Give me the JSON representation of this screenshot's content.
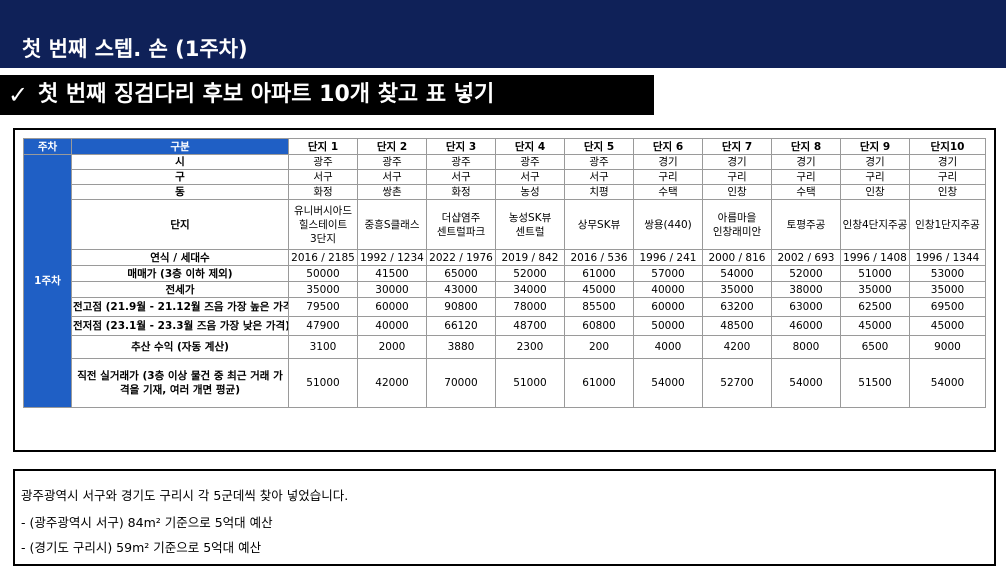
{
  "header": {
    "title": "첫 번째 스텝. 손 (1주차)"
  },
  "subheader": {
    "icon": "check-icon",
    "title": "첫 번째 징검다리 후보 아파트 10개 찾고 표 넣기"
  },
  "table": {
    "corner_label": "주차",
    "category_header": "구분",
    "complex_headers": [
      "단지 1",
      "단지 2",
      "단지 3",
      "단지 4",
      "단지 5",
      "단지 6",
      "단지 7",
      "단지 8",
      "단지 9",
      "단지10"
    ],
    "week_label": "1주차",
    "rows": [
      {
        "label": "시",
        "values": [
          "광주",
          "광주",
          "광주",
          "광주",
          "광주",
          "경기",
          "경기",
          "경기",
          "경기",
          "경기"
        ]
      },
      {
        "label": "구",
        "values": [
          "서구",
          "서구",
          "서구",
          "서구",
          "서구",
          "구리",
          "구리",
          "구리",
          "구리",
          "구리"
        ]
      },
      {
        "label": "동",
        "values": [
          "화정",
          "쌍촌",
          "화정",
          "농성",
          "치평",
          "수택",
          "인창",
          "수택",
          "인창",
          "인창"
        ]
      },
      {
        "label": "단지",
        "values": [
          "유니버시아드\n힐스테이트\n3단지",
          "중흥S클래스",
          "더샵염주\n센트럴파크",
          "농성SK뷰\n센트럴",
          "상무SK뷰",
          "쌍용(440)",
          "아름마을\n인창래미안",
          "토평주공",
          "인창4단지주공",
          "인창1단지주공"
        ]
      },
      {
        "label": "연식 / 세대수",
        "values": [
          "2016 / 2185",
          "1992 / 1234",
          "2022 / 1976",
          "2019 / 842",
          "2016 / 536",
          "1996 / 241",
          "2000 / 816",
          "2002 / 693",
          "1996 / 1408",
          "1996 / 1344"
        ]
      },
      {
        "label": "매매가 (3층 이하 제외)",
        "values": [
          "50000",
          "41500",
          "65000",
          "52000",
          "61000",
          "57000",
          "54000",
          "52000",
          "51000",
          "53000"
        ]
      },
      {
        "label": "전세가",
        "values": [
          "35000",
          "30000",
          "43000",
          "34000",
          "45000",
          "40000",
          "35000",
          "38000",
          "35000",
          "35000"
        ]
      },
      {
        "label": "전고점 (21.9월 - 21.12월 즈음 가장 높은 가격)",
        "values": [
          "79500",
          "60000",
          "90800",
          "78000",
          "85500",
          "60000",
          "63200",
          "63000",
          "62500",
          "69500"
        ]
      },
      {
        "label": "전저점 (23.1월 - 23.3월 즈음 가장 낮은 가격)",
        "values": [
          "47900",
          "40000",
          "66120",
          "48700",
          "60800",
          "50000",
          "48500",
          "46000",
          "45000",
          "45000"
        ]
      },
      {
        "label": "추산 수익 (자동 계산)",
        "values": [
          "3100",
          "2000",
          "3880",
          "2300",
          "200",
          "4000",
          "4200",
          "8000",
          "6500",
          "9000"
        ]
      },
      {
        "label": "직전 실거래가\n(3층 이상 물건 중 최근 거래 가격을 기재,\n여러 개면 평균)",
        "values": [
          "51000",
          "42000",
          "70000",
          "51000",
          "61000",
          "54000",
          "52700",
          "54000",
          "51500",
          "54000"
        ]
      }
    ]
  },
  "notes": {
    "line1": "광주광역시 서구와 경기도 구리시 각 5군데씩 찾아 넣었습니다.",
    "line2": "- (광주광역시 서구) 84m² 기준으로 5억대 예산",
    "line3": "- (경기도 구리시) 59m² 기준으로 5억대 예산"
  }
}
